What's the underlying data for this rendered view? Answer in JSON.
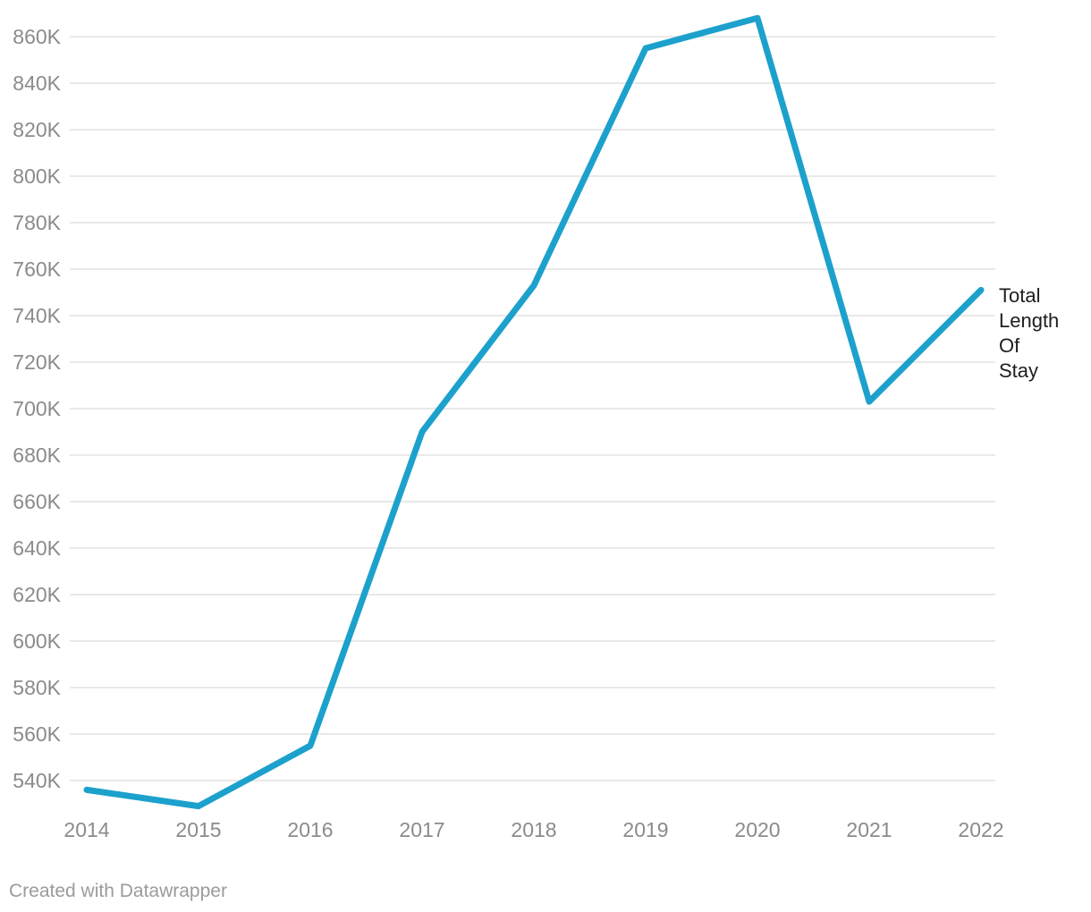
{
  "chart_data": {
    "type": "line",
    "title": "",
    "xlabel": "",
    "ylabel": "",
    "x": [
      2014,
      2015,
      2016,
      2017,
      2018,
      2019,
      2020,
      2021,
      2022
    ],
    "x_tick_labels": [
      "2014",
      "2015",
      "2016",
      "2017",
      "2018",
      "2019",
      "2020",
      "2021",
      "2022"
    ],
    "series": [
      {
        "name": "Total Length Of Stay",
        "values": [
          536000,
          529000,
          555000,
          690000,
          753000,
          855000,
          868000,
          703000,
          751000
        ]
      }
    ],
    "y_tick_labels": [
      "540K",
      "560K",
      "580K",
      "600K",
      "620K",
      "640K",
      "660K",
      "680K",
      "700K",
      "720K",
      "740K",
      "760K",
      "780K",
      "800K",
      "820K",
      "840K",
      "860K"
    ],
    "y_tick_values": [
      540000,
      560000,
      580000,
      600000,
      620000,
      640000,
      660000,
      680000,
      700000,
      720000,
      740000,
      760000,
      780000,
      800000,
      820000,
      840000,
      860000
    ],
    "ylim": [
      526000,
      872000
    ],
    "grid": "horizontal",
    "legend_position": "right-of-line-end",
    "line_color": "#1ca1cc",
    "gridline_color": "#e9e9e9",
    "tick_label_color": "#8b8b8b",
    "label_color": "#1d1d1d"
  },
  "labels": {
    "series_label": "Total Length Of Stay"
  },
  "footer": {
    "credit": "Created with Datawrapper"
  }
}
